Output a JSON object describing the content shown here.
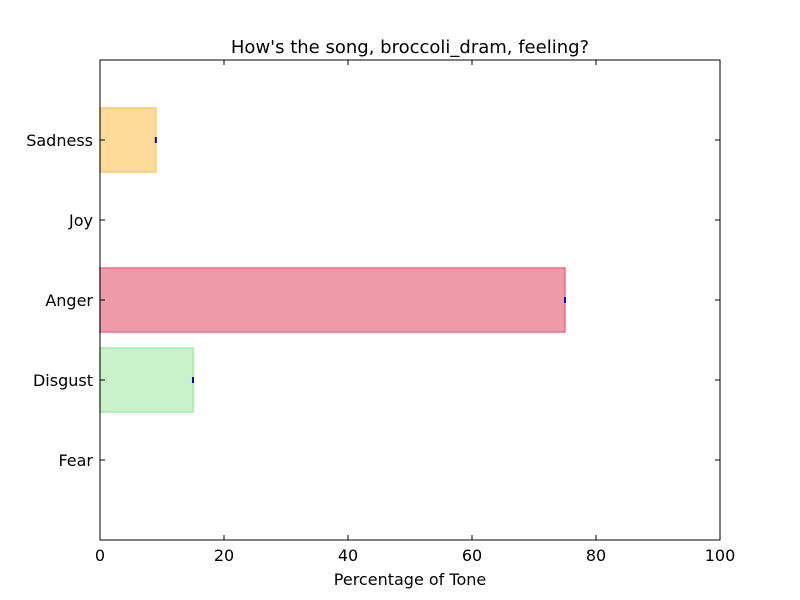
{
  "chart_data": {
    "type": "bar",
    "orientation": "horizontal",
    "title": "How's the song, broccoli_dram, feeling?",
    "xlabel": "Percentage of Tone",
    "ylabel": "",
    "xlim": [
      0,
      100
    ],
    "xticks": [
      "0",
      "20",
      "40",
      "60",
      "80",
      "100"
    ],
    "grid": false,
    "legend": "none",
    "categories": [
      "Sadness",
      "Joy",
      "Anger",
      "Disgust",
      "Fear"
    ],
    "values": [
      9,
      0,
      75,
      15,
      0
    ],
    "colors": [
      "#ffda99",
      "#e8c8ff",
      "#ee9aa8",
      "#c9f2c9",
      "#b0d0ff"
    ],
    "edge_colors": [
      "#f5c770",
      "#c9a0f0",
      "#e8718a",
      "#a5e6a5",
      "#88b4f0"
    ],
    "error_marker_color": "#0000cc"
  }
}
